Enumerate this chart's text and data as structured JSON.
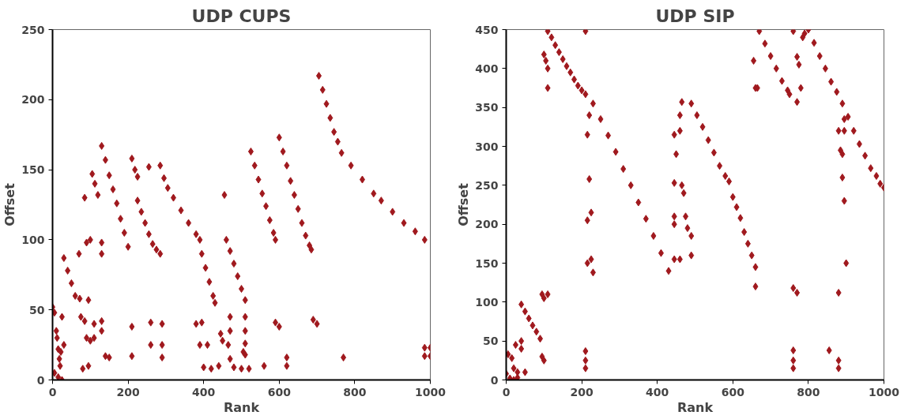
{
  "chart_data": [
    {
      "type": "scatter",
      "title": "UDP CUPS",
      "xlabel": "Rank",
      "ylabel": "Offset",
      "marker": "diamond",
      "grid": false,
      "xlim": [
        0,
        1000
      ],
      "ylim": [
        0,
        250
      ],
      "xticks": [
        0,
        200,
        400,
        600,
        800,
        1000
      ],
      "yticks": [
        0,
        50,
        100,
        150,
        200,
        250
      ],
      "series": [
        {
          "color": "#a0191e",
          "x": [
            130,
            140,
            150,
            160,
            170,
            180,
            190,
            200,
            210,
            218,
            225,
            225,
            235,
            245,
            255,
            265,
            275,
            285,
            30,
            40,
            50,
            60,
            72,
            95,
            105,
            112,
            120,
            285,
            295,
            305,
            320,
            340,
            360,
            380,
            390,
            395,
            405,
            415,
            425,
            430,
            460,
            470,
            480,
            490,
            500,
            510,
            525,
            535,
            545,
            555,
            565,
            575,
            585,
            590,
            600,
            610,
            620,
            630,
            640,
            650,
            660,
            670,
            680,
            685,
            705,
            715,
            725,
            735,
            745,
            755,
            765,
            790,
            820,
            850,
            870,
            900,
            930,
            960,
            985,
            0,
            5,
            10,
            12,
            15,
            18,
            20,
            5,
            15,
            25,
            25,
            30,
            22,
            75,
            85,
            90,
            100,
            95,
            80,
            110,
            110,
            130,
            130,
            140,
            150,
            70,
            85,
            90,
            100,
            130,
            130,
            210,
            210,
            255,
            260,
            260,
            290,
            290,
            290,
            380,
            395,
            390,
            410,
            400,
            420,
            440,
            445,
            450,
            455,
            470,
            470,
            465,
            470,
            480,
            500,
            505,
            510,
            510,
            510,
            510,
            520,
            560,
            590,
            600,
            620,
            620,
            690,
            700,
            770,
            985,
            985,
            1000,
            1000
          ],
          "values": [
            167,
            157,
            146,
            136,
            126,
            115,
            105,
            95,
            158,
            150,
            145,
            128,
            120,
            112,
            104,
            97,
            93,
            90,
            87,
            78,
            69,
            60,
            58,
            57,
            147,
            140,
            132,
            153,
            144,
            137,
            130,
            121,
            112,
            104,
            100,
            90,
            80,
            70,
            60,
            55,
            100,
            92,
            83,
            74,
            65,
            57,
            163,
            153,
            143,
            133,
            124,
            114,
            105,
            100,
            173,
            163,
            153,
            142,
            132,
            122,
            112,
            103,
            96,
            93,
            217,
            207,
            197,
            187,
            177,
            170,
            162,
            153,
            143,
            133,
            128,
            120,
            112,
            106,
            100,
            52,
            48,
            35,
            30,
            22,
            15,
            10,
            5,
            2,
            0,
            45,
            25,
            20,
            45,
            42,
            30,
            28,
            10,
            8,
            40,
            30,
            42,
            35,
            17,
            16,
            90,
            130,
            98,
            100,
            98,
            90,
            38,
            17,
            152,
            41,
            25,
            40,
            25,
            16,
            40,
            41,
            25,
            25,
            9,
            8,
            10,
            33,
            28,
            132,
            45,
            35,
            25,
            15,
            9,
            8,
            20,
            45,
            35,
            26,
            18,
            8,
            10,
            41,
            38,
            16,
            10,
            43,
            40,
            16,
            23,
            17,
            23,
            17
          ]
        }
      ]
    },
    {
      "type": "scatter",
      "title": "UDP SIP",
      "xlabel": "Rank",
      "ylabel": "Offset",
      "marker": "diamond",
      "grid": false,
      "xlim": [
        0,
        1000
      ],
      "ylim": [
        0,
        450
      ],
      "xticks": [
        0,
        200,
        400,
        600,
        800,
        1000
      ],
      "yticks": [
        0,
        50,
        100,
        150,
        200,
        250,
        300,
        350,
        400,
        450
      ],
      "series": [
        {
          "color": "#a0191e",
          "x": [
            110,
            120,
            130,
            140,
            150,
            160,
            170,
            180,
            190,
            200,
            210,
            230,
            250,
            270,
            290,
            310,
            330,
            350,
            370,
            390,
            410,
            430,
            490,
            505,
            520,
            535,
            550,
            565,
            580,
            590,
            600,
            610,
            620,
            630,
            640,
            650,
            660,
            670,
            685,
            700,
            715,
            730,
            745,
            750,
            800,
            815,
            830,
            845,
            860,
            875,
            890,
            905,
            920,
            935,
            950,
            965,
            980,
            990,
            1000,
            40,
            50,
            60,
            70,
            80,
            90,
            0,
            10,
            20,
            30,
            5,
            15,
            20,
            30,
            25,
            40,
            40,
            50,
            95,
            100,
            110,
            95,
            100,
            100,
            105,
            110,
            110,
            210,
            220,
            215,
            220,
            215,
            225,
            215,
            225,
            230,
            210,
            210,
            210,
            445,
            445,
            460,
            445,
            445,
            465,
            470,
            450,
            445,
            460,
            460,
            465,
            475,
            480,
            490,
            490,
            660,
            655,
            660,
            665,
            760,
            770,
            775,
            780,
            770,
            760,
            770,
            760,
            760,
            760,
            855,
            880,
            880,
            880,
            895,
            895,
            880,
            885,
            890,
            890,
            895,
            900,
            785,
            790
          ],
          "values": [
            448,
            440,
            430,
            421,
            412,
            403,
            395,
            386,
            378,
            372,
            367,
            355,
            335,
            314,
            293,
            271,
            250,
            228,
            207,
            185,
            163,
            140,
            355,
            340,
            325,
            308,
            292,
            275,
            262,
            255,
            235,
            222,
            208,
            190,
            175,
            160,
            145,
            448,
            432,
            416,
            400,
            384,
            372,
            367,
            450,
            433,
            416,
            400,
            383,
            370,
            355,
            338,
            320,
            303,
            288,
            272,
            262,
            252,
            247,
            97,
            88,
            79,
            70,
            62,
            53,
            8,
            2,
            0,
            3,
            33,
            28,
            15,
            10,
            45,
            50,
            40,
            10,
            110,
            105,
            110,
            30,
            25,
            418,
            410,
            400,
            375,
            448,
            340,
            315,
            258,
            205,
            215,
            150,
            155,
            138,
            37,
            25,
            15,
            200,
            155,
            155,
            210,
            253,
            250,
            240,
            290,
            315,
            320,
            340,
            357,
            210,
            195,
            185,
            160,
            120,
            410,
            375,
            375,
            448,
            415,
            405,
            375,
            357,
            118,
            112,
            38,
            25,
            15,
            38,
            25,
            15,
            112,
            335,
            320,
            320,
            295,
            290,
            260,
            230,
            150,
            440,
            445
          ]
        }
      ]
    }
  ]
}
